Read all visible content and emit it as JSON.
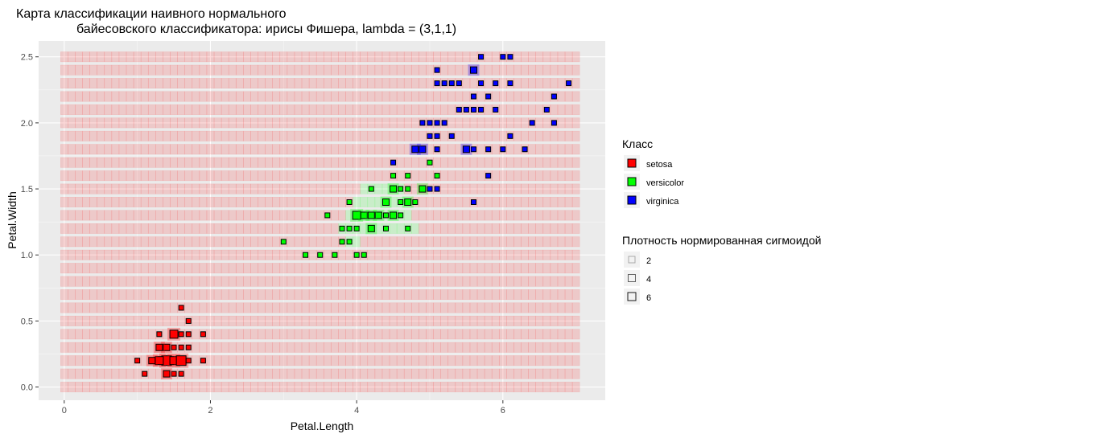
{
  "chart_data": {
    "type": "scatter",
    "title_line1": "Карта классификации наивного нормального",
    "title_line2": "байесовского классификатора: ирисы Фишера, lambda = (3,1,1)",
    "xlabel": "Petal.Length",
    "ylabel": "Petal.Width",
    "xlim": [
      -0.35,
      7.4
    ],
    "ylim": [
      -0.1,
      2.62
    ],
    "x_ticks": [
      "0",
      "2",
      "4",
      "6"
    ],
    "x_tick_values": [
      0,
      2,
      4,
      6
    ],
    "y_ticks": [
      "0.0",
      "0.5",
      "1.0",
      "1.5",
      "2.0",
      "2.5"
    ],
    "y_tick_values": [
      0,
      0.5,
      1.0,
      1.5,
      2.0,
      2.5
    ],
    "grid": true,
    "background": "#ebebeb",
    "map_grid": {
      "x_from": 0,
      "x_to": 7.0,
      "x_step": 0.1,
      "y_from": 0,
      "y_to": 2.5,
      "y_step": 0.1,
      "default_class": "setosa",
      "versicolor_region": [
        {
          "y": 1.1,
          "x_from": 3.9,
          "x_to": 4.0
        },
        {
          "y": 1.2,
          "x_from": 3.8,
          "x_to": 4.8
        },
        {
          "y": 1.3,
          "x_from": 3.9,
          "x_to": 4.7
        },
        {
          "y": 1.4,
          "x_from": 4.0,
          "x_to": 4.7
        },
        {
          "y": 1.5,
          "x_from": 4.1,
          "x_to": 4.6
        }
      ]
    },
    "legend_class": {
      "title": "Класс",
      "placement": "right",
      "entries": [
        {
          "label": "setosa",
          "color": "#ff0000"
        },
        {
          "label": "versicolor",
          "color": "#00ff00"
        },
        {
          "label": "virginica",
          "color": "#0000ff"
        }
      ]
    },
    "legend_density": {
      "title": "Плотность нормированная сигмоидой",
      "entries": [
        {
          "label": "2",
          "value": 2
        },
        {
          "label": "4",
          "value": 4
        },
        {
          "label": "6",
          "value": 6
        }
      ]
    },
    "series": [
      {
        "name": "setosa",
        "color": "#ff0000",
        "points": [
          [
            1.4,
            0.2
          ],
          [
            1.3,
            0.2
          ],
          [
            1.5,
            0.2
          ],
          [
            1.4,
            0.2
          ],
          [
            1.7,
            0.4
          ],
          [
            1.4,
            0.3
          ],
          [
            1.5,
            0.2
          ],
          [
            1.5,
            0.1
          ],
          [
            1.5,
            0.2
          ],
          [
            1.6,
            0.2
          ],
          [
            1.4,
            0.1
          ],
          [
            1.1,
            0.1
          ],
          [
            1.2,
            0.2
          ],
          [
            1.5,
            0.4
          ],
          [
            1.3,
            0.4
          ],
          [
            1.4,
            0.3
          ],
          [
            1.7,
            0.3
          ],
          [
            1.5,
            0.3
          ],
          [
            1.7,
            0.2
          ],
          [
            1.5,
            0.4
          ],
          [
            1.0,
            0.2
          ],
          [
            1.7,
            0.5
          ],
          [
            1.9,
            0.2
          ],
          [
            1.6,
            0.2
          ],
          [
            1.6,
            0.4
          ],
          [
            1.4,
            0.2
          ],
          [
            1.6,
            0.2
          ],
          [
            1.5,
            0.4
          ],
          [
            1.4,
            0.2
          ],
          [
            1.2,
            0.2
          ],
          [
            1.3,
            0.2
          ],
          [
            1.3,
            0.3
          ],
          [
            1.3,
            0.3
          ],
          [
            1.6,
            0.6
          ],
          [
            1.9,
            0.4
          ],
          [
            1.6,
            0.3
          ],
          [
            1.4,
            0.2
          ],
          [
            1.3,
            0.2
          ],
          [
            1.6,
            0.2
          ],
          [
            1.4,
            0.1
          ],
          [
            1.6,
            0.1
          ]
        ]
      },
      {
        "name": "versicolor",
        "color": "#00ff00",
        "points": [
          [
            4.7,
            1.4
          ],
          [
            4.5,
            1.5
          ],
          [
            4.9,
            1.5
          ],
          [
            4.0,
            1.3
          ],
          [
            4.6,
            1.5
          ],
          [
            4.5,
            1.3
          ],
          [
            4.7,
            1.6
          ],
          [
            3.3,
            1.0
          ],
          [
            4.6,
            1.3
          ],
          [
            3.9,
            1.4
          ],
          [
            3.5,
            1.0
          ],
          [
            4.2,
            1.5
          ],
          [
            4.0,
            1.0
          ],
          [
            4.7,
            1.4
          ],
          [
            3.6,
            1.3
          ],
          [
            4.4,
            1.4
          ],
          [
            4.1,
            1.0
          ],
          [
            4.5,
            1.5
          ],
          [
            3.9,
            1.1
          ],
          [
            4.8,
            1.8
          ],
          [
            4.0,
            1.3
          ],
          [
            4.9,
            1.5
          ],
          [
            4.7,
            1.2
          ],
          [
            4.3,
            1.3
          ],
          [
            4.4,
            1.4
          ],
          [
            4.8,
            1.4
          ],
          [
            5.0,
            1.7
          ],
          [
            3.8,
            1.1
          ],
          [
            3.7,
            1.0
          ],
          [
            3.9,
            1.2
          ],
          [
            5.1,
            1.6
          ],
          [
            4.5,
            1.6
          ],
          [
            4.7,
            1.5
          ],
          [
            4.4,
            1.3
          ],
          [
            4.1,
            1.3
          ],
          [
            4.0,
            1.3
          ],
          [
            4.4,
            1.2
          ],
          [
            4.6,
            1.4
          ],
          [
            4.0,
            1.2
          ],
          [
            3.0,
            1.1
          ],
          [
            4.2,
            1.3
          ],
          [
            4.2,
            1.2
          ],
          [
            4.2,
            1.3
          ],
          [
            4.3,
            1.3
          ],
          [
            4.1,
            1.3
          ],
          [
            4.2,
            1.2
          ],
          [
            4.5,
            1.3
          ],
          [
            3.8,
            1.2
          ]
        ]
      },
      {
        "name": "virginica",
        "color": "#0000ff",
        "points": [
          [
            6.0,
            2.5
          ],
          [
            5.1,
            1.9
          ],
          [
            5.9,
            2.1
          ],
          [
            5.6,
            1.8
          ],
          [
            5.8,
            2.2
          ],
          [
            6.6,
            2.1
          ],
          [
            4.5,
            1.7
          ],
          [
            6.3,
            1.8
          ],
          [
            5.8,
            1.8
          ],
          [
            6.1,
            2.5
          ],
          [
            5.1,
            2.0
          ],
          [
            5.3,
            1.9
          ],
          [
            5.5,
            2.1
          ],
          [
            5.0,
            2.0
          ],
          [
            5.1,
            2.4
          ],
          [
            5.3,
            2.3
          ],
          [
            5.5,
            1.8
          ],
          [
            6.7,
            2.2
          ],
          [
            6.9,
            2.3
          ],
          [
            5.0,
            1.5
          ],
          [
            5.7,
            2.3
          ],
          [
            4.9,
            2.0
          ],
          [
            6.7,
            2.0
          ],
          [
            4.9,
            1.8
          ],
          [
            5.7,
            2.1
          ],
          [
            6.0,
            1.8
          ],
          [
            4.8,
            1.8
          ],
          [
            4.9,
            1.8
          ],
          [
            5.6,
            2.1
          ],
          [
            5.8,
            1.6
          ],
          [
            6.1,
            1.9
          ],
          [
            6.4,
            2.0
          ],
          [
            5.6,
            2.2
          ],
          [
            5.1,
            1.5
          ],
          [
            5.6,
            1.4
          ],
          [
            6.1,
            2.3
          ],
          [
            5.6,
            2.4
          ],
          [
            5.5,
            1.8
          ],
          [
            4.8,
            1.8
          ],
          [
            5.4,
            2.1
          ],
          [
            5.6,
            2.4
          ],
          [
            5.1,
            2.3
          ],
          [
            5.9,
            2.3
          ],
          [
            5.7,
            2.5
          ],
          [
            5.2,
            2.3
          ],
          [
            5.0,
            1.9
          ],
          [
            5.2,
            2.0
          ],
          [
            5.4,
            2.3
          ],
          [
            5.1,
            1.8
          ]
        ]
      }
    ]
  }
}
